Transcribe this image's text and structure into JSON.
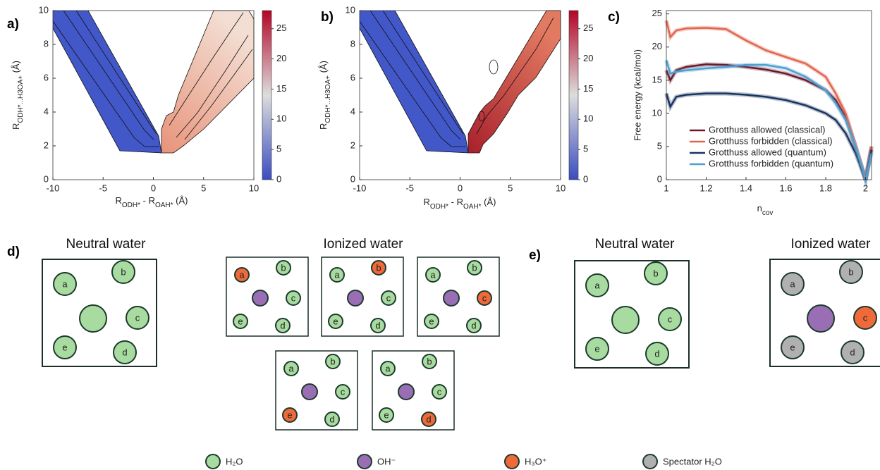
{
  "chart_data": [
    {
      "type": "contour",
      "panel_label": "a)",
      "xlabel": [
        "R",
        "ODH*",
        " - R",
        "OAH*",
        " (Å)"
      ],
      "ylabel": [
        "R",
        "ODH*...H3OA+",
        " (Å)"
      ],
      "xlim": [
        -10,
        10
      ],
      "ylim": [
        0,
        10
      ],
      "xticks": [
        -10,
        -5,
        0,
        5,
        10
      ],
      "yticks": [
        0,
        2,
        4,
        6,
        8,
        10
      ],
      "colorbar": {
        "lim": [
          0,
          28
        ],
        "ticks": [
          0,
          5,
          10,
          15,
          20,
          25
        ],
        "colors": [
          "#3b4cc0",
          "#dcdddd",
          "#b40426"
        ]
      }
    },
    {
      "type": "contour",
      "panel_label": "b)",
      "xlabel": [
        "R",
        "ODH*",
        " - R",
        "OAH*",
        " (Å)"
      ],
      "ylabel": [
        "R",
        "ODH*...H3OA+",
        " (Å)"
      ],
      "xlim": [
        -10,
        10
      ],
      "ylim": [
        0,
        10
      ],
      "xticks": [
        -10,
        -5,
        0,
        5,
        10
      ],
      "yticks": [
        0,
        2,
        4,
        6,
        8,
        10
      ],
      "colorbar": {
        "lim": [
          0,
          28
        ],
        "ticks": [
          0,
          5,
          10,
          15,
          20,
          25
        ],
        "colors": [
          "#3b4cc0",
          "#dcdddd",
          "#b40426"
        ]
      }
    },
    {
      "type": "line",
      "panel_label": "c)",
      "ylabel": "Free energy (kcal/mol)",
      "xlabel": [
        "n",
        "cov"
      ],
      "xlim": [
        1,
        2.03
      ],
      "ylim": [
        0,
        25.5
      ],
      "xticks": [
        1,
        1.2,
        1.4,
        1.6,
        1.8,
        2
      ],
      "yticks": [
        0,
        5,
        10,
        15,
        20,
        25
      ],
      "legend": "lower left",
      "x": [
        1,
        1.02,
        1.05,
        1.1,
        1.2,
        1.3,
        1.4,
        1.5,
        1.6,
        1.7,
        1.8,
        1.85,
        1.9,
        1.95,
        2,
        2.03
      ],
      "series": [
        {
          "name": "Grotthuss allowed (classical)",
          "color": "#6b1a2e",
          "values": [
            16.5,
            15,
            16.5,
            17,
            17.4,
            17.3,
            17,
            16.6,
            16,
            15,
            13.5,
            12,
            9.5,
            5,
            0,
            5
          ]
        },
        {
          "name": "Grotthuss forbidden (classical)",
          "color": "#e06650",
          "values": [
            24,
            21.5,
            22.5,
            22.8,
            22.9,
            22.7,
            21,
            19.5,
            18.5,
            17.5,
            15.5,
            13,
            10,
            5,
            0,
            5
          ]
        },
        {
          "name": "Grotthuss allowed (quantum)",
          "color": "#1a3560",
          "values": [
            13,
            11,
            12.5,
            12.8,
            13,
            13,
            12.8,
            12.5,
            12,
            11.2,
            10,
            9,
            7,
            4,
            0,
            4.5
          ]
        },
        {
          "name": "Grotthuss forbidden (quantum)",
          "color": "#4fa0d0",
          "values": [
            18,
            16,
            16.3,
            16.5,
            16.8,
            17,
            17.3,
            17.3,
            16.8,
            15.5,
            13.5,
            11.5,
            9,
            5,
            0,
            4
          ]
        }
      ]
    }
  ],
  "diagram": {
    "d": {
      "panel_label": "d)",
      "neutral_title": "Neutral water",
      "ionized_title": "Ionized water"
    },
    "e": {
      "panel_label": "e)",
      "neutral_title": "Neutral water",
      "ionized_title": "Ionized water"
    },
    "molecule_labels": [
      "a",
      "b",
      "c",
      "d",
      "e"
    ],
    "legend": [
      "H₂O",
      "OH⁻",
      "H₃O⁺",
      "Spectator H₂O"
    ]
  }
}
